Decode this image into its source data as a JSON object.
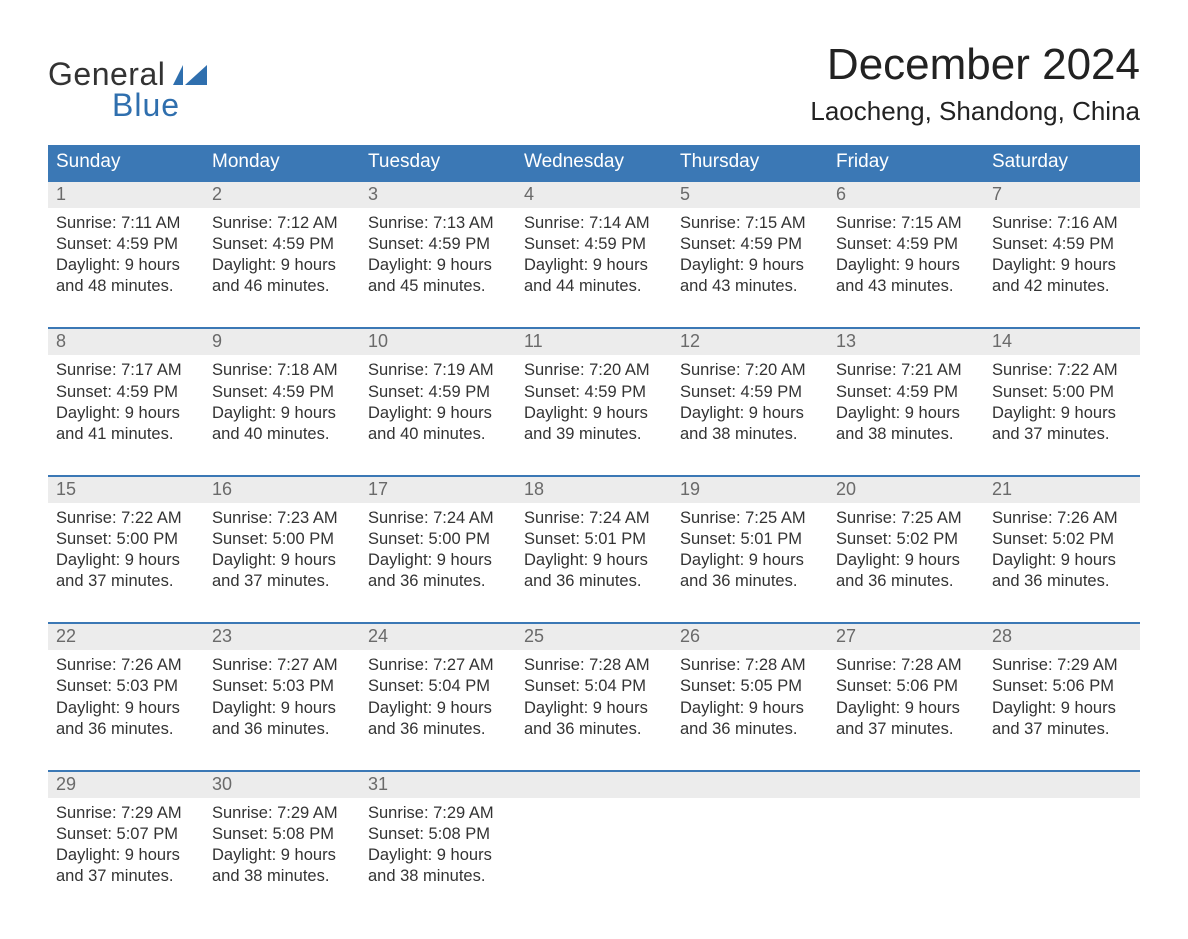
{
  "colors": {
    "header_bg": "#3b78b5",
    "header_text": "#ffffff",
    "week_top_border": "#3b78b5",
    "daynum_bg": "#ececec",
    "daynum_text": "#6a6a6a",
    "body_text": "#333333",
    "title_text": "#222222",
    "logo_blue": "#2f6fae",
    "page_bg": "#ffffff"
  },
  "typography": {
    "month_title_fontsize": 44,
    "location_fontsize": 26,
    "header_fontsize": 19,
    "body_fontsize": 16.5,
    "daynum_fontsize": 18
  },
  "logo": {
    "line1": "General",
    "line2": "Blue"
  },
  "title": "December 2024",
  "location": "Laocheng, Shandong, China",
  "day_headers": [
    "Sunday",
    "Monday",
    "Tuesday",
    "Wednesday",
    "Thursday",
    "Friday",
    "Saturday"
  ],
  "weeks": [
    [
      {
        "num": "1",
        "sunrise": "Sunrise: 7:11 AM",
        "sunset": "Sunset: 4:59 PM",
        "day1": "Daylight: 9 hours",
        "day2": "and 48 minutes."
      },
      {
        "num": "2",
        "sunrise": "Sunrise: 7:12 AM",
        "sunset": "Sunset: 4:59 PM",
        "day1": "Daylight: 9 hours",
        "day2": "and 46 minutes."
      },
      {
        "num": "3",
        "sunrise": "Sunrise: 7:13 AM",
        "sunset": "Sunset: 4:59 PM",
        "day1": "Daylight: 9 hours",
        "day2": "and 45 minutes."
      },
      {
        "num": "4",
        "sunrise": "Sunrise: 7:14 AM",
        "sunset": "Sunset: 4:59 PM",
        "day1": "Daylight: 9 hours",
        "day2": "and 44 minutes."
      },
      {
        "num": "5",
        "sunrise": "Sunrise: 7:15 AM",
        "sunset": "Sunset: 4:59 PM",
        "day1": "Daylight: 9 hours",
        "day2": "and 43 minutes."
      },
      {
        "num": "6",
        "sunrise": "Sunrise: 7:15 AM",
        "sunset": "Sunset: 4:59 PM",
        "day1": "Daylight: 9 hours",
        "day2": "and 43 minutes."
      },
      {
        "num": "7",
        "sunrise": "Sunrise: 7:16 AM",
        "sunset": "Sunset: 4:59 PM",
        "day1": "Daylight: 9 hours",
        "day2": "and 42 minutes."
      }
    ],
    [
      {
        "num": "8",
        "sunrise": "Sunrise: 7:17 AM",
        "sunset": "Sunset: 4:59 PM",
        "day1": "Daylight: 9 hours",
        "day2": "and 41 minutes."
      },
      {
        "num": "9",
        "sunrise": "Sunrise: 7:18 AM",
        "sunset": "Sunset: 4:59 PM",
        "day1": "Daylight: 9 hours",
        "day2": "and 40 minutes."
      },
      {
        "num": "10",
        "sunrise": "Sunrise: 7:19 AM",
        "sunset": "Sunset: 4:59 PM",
        "day1": "Daylight: 9 hours",
        "day2": "and 40 minutes."
      },
      {
        "num": "11",
        "sunrise": "Sunrise: 7:20 AM",
        "sunset": "Sunset: 4:59 PM",
        "day1": "Daylight: 9 hours",
        "day2": "and 39 minutes."
      },
      {
        "num": "12",
        "sunrise": "Sunrise: 7:20 AM",
        "sunset": "Sunset: 4:59 PM",
        "day1": "Daylight: 9 hours",
        "day2": "and 38 minutes."
      },
      {
        "num": "13",
        "sunrise": "Sunrise: 7:21 AM",
        "sunset": "Sunset: 4:59 PM",
        "day1": "Daylight: 9 hours",
        "day2": "and 38 minutes."
      },
      {
        "num": "14",
        "sunrise": "Sunrise: 7:22 AM",
        "sunset": "Sunset: 5:00 PM",
        "day1": "Daylight: 9 hours",
        "day2": "and 37 minutes."
      }
    ],
    [
      {
        "num": "15",
        "sunrise": "Sunrise: 7:22 AM",
        "sunset": "Sunset: 5:00 PM",
        "day1": "Daylight: 9 hours",
        "day2": "and 37 minutes."
      },
      {
        "num": "16",
        "sunrise": "Sunrise: 7:23 AM",
        "sunset": "Sunset: 5:00 PM",
        "day1": "Daylight: 9 hours",
        "day2": "and 37 minutes."
      },
      {
        "num": "17",
        "sunrise": "Sunrise: 7:24 AM",
        "sunset": "Sunset: 5:00 PM",
        "day1": "Daylight: 9 hours",
        "day2": "and 36 minutes."
      },
      {
        "num": "18",
        "sunrise": "Sunrise: 7:24 AM",
        "sunset": "Sunset: 5:01 PM",
        "day1": "Daylight: 9 hours",
        "day2": "and 36 minutes."
      },
      {
        "num": "19",
        "sunrise": "Sunrise: 7:25 AM",
        "sunset": "Sunset: 5:01 PM",
        "day1": "Daylight: 9 hours",
        "day2": "and 36 minutes."
      },
      {
        "num": "20",
        "sunrise": "Sunrise: 7:25 AM",
        "sunset": "Sunset: 5:02 PM",
        "day1": "Daylight: 9 hours",
        "day2": "and 36 minutes."
      },
      {
        "num": "21",
        "sunrise": "Sunrise: 7:26 AM",
        "sunset": "Sunset: 5:02 PM",
        "day1": "Daylight: 9 hours",
        "day2": "and 36 minutes."
      }
    ],
    [
      {
        "num": "22",
        "sunrise": "Sunrise: 7:26 AM",
        "sunset": "Sunset: 5:03 PM",
        "day1": "Daylight: 9 hours",
        "day2": "and 36 minutes."
      },
      {
        "num": "23",
        "sunrise": "Sunrise: 7:27 AM",
        "sunset": "Sunset: 5:03 PM",
        "day1": "Daylight: 9 hours",
        "day2": "and 36 minutes."
      },
      {
        "num": "24",
        "sunrise": "Sunrise: 7:27 AM",
        "sunset": "Sunset: 5:04 PM",
        "day1": "Daylight: 9 hours",
        "day2": "and 36 minutes."
      },
      {
        "num": "25",
        "sunrise": "Sunrise: 7:28 AM",
        "sunset": "Sunset: 5:04 PM",
        "day1": "Daylight: 9 hours",
        "day2": "and 36 minutes."
      },
      {
        "num": "26",
        "sunrise": "Sunrise: 7:28 AM",
        "sunset": "Sunset: 5:05 PM",
        "day1": "Daylight: 9 hours",
        "day2": "and 36 minutes."
      },
      {
        "num": "27",
        "sunrise": "Sunrise: 7:28 AM",
        "sunset": "Sunset: 5:06 PM",
        "day1": "Daylight: 9 hours",
        "day2": "and 37 minutes."
      },
      {
        "num": "28",
        "sunrise": "Sunrise: 7:29 AM",
        "sunset": "Sunset: 5:06 PM",
        "day1": "Daylight: 9 hours",
        "day2": "and 37 minutes."
      }
    ],
    [
      {
        "num": "29",
        "sunrise": "Sunrise: 7:29 AM",
        "sunset": "Sunset: 5:07 PM",
        "day1": "Daylight: 9 hours",
        "day2": "and 37 minutes."
      },
      {
        "num": "30",
        "sunrise": "Sunrise: 7:29 AM",
        "sunset": "Sunset: 5:08 PM",
        "day1": "Daylight: 9 hours",
        "day2": "and 38 minutes."
      },
      {
        "num": "31",
        "sunrise": "Sunrise: 7:29 AM",
        "sunset": "Sunset: 5:08 PM",
        "day1": "Daylight: 9 hours",
        "day2": "and 38 minutes."
      },
      null,
      null,
      null,
      null
    ]
  ]
}
